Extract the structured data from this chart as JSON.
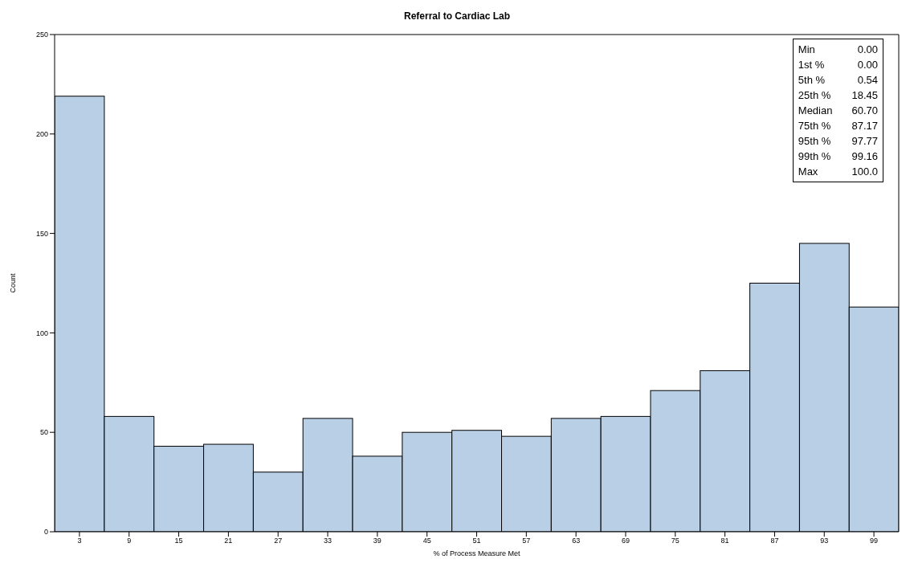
{
  "chart_data": {
    "type": "histogram",
    "title": "Referral to Cardiac Lab",
    "xlabel": "% of Process Measure Met",
    "ylabel": "Count",
    "bins": [
      0,
      6,
      12,
      18,
      24,
      30,
      36,
      42,
      48,
      54,
      60,
      66,
      72,
      78,
      84,
      90,
      96,
      102
    ],
    "values": [
      219,
      58,
      43,
      44,
      30,
      57,
      38,
      50,
      51,
      48,
      57,
      58,
      71,
      81,
      125,
      145,
      113
    ],
    "color": "#b9cfe6",
    "xlim": [
      0,
      102
    ],
    "xticks": [
      3,
      9,
      15,
      21,
      27,
      33,
      39,
      45,
      51,
      57,
      63,
      69,
      75,
      81,
      87,
      93,
      99
    ],
    "ylim": [
      0,
      250
    ],
    "yticks": [
      0,
      50,
      100,
      150,
      200,
      250
    ],
    "grid": false,
    "legend": false,
    "annotations": [
      "Min 0.00",
      "1st % 0.00",
      "5th % 0.54",
      "25th % 18.45",
      "Median 60.70",
      "75th % 87.17",
      "95th % 97.77",
      "99th % 99.16",
      "Max 100.0"
    ]
  }
}
